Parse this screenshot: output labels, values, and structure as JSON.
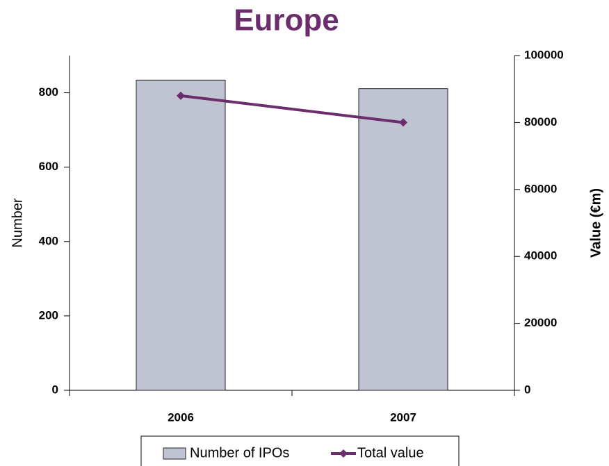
{
  "chart_data": {
    "type": "bar",
    "title": "Europe",
    "ylabel": "Number",
    "y2label": "Value (€m)",
    "categories": [
      "2006",
      "2007"
    ],
    "series": [
      {
        "name": "Number of IPOs",
        "type": "bar",
        "color": "#c0c4d2",
        "values": [
          834,
          811
        ]
      },
      {
        "name": "Total value",
        "type": "line",
        "color": "#6b2d6b",
        "axis": "y2",
        "values": [
          88000,
          80000
        ]
      }
    ],
    "ylim": [
      0,
      900
    ],
    "yticks": [
      0,
      200,
      400,
      600,
      800
    ],
    "y2lim": [
      0,
      100000
    ],
    "y2ticks": [
      0,
      20000,
      40000,
      60000,
      80000,
      100000
    ],
    "legend": "bottom"
  }
}
